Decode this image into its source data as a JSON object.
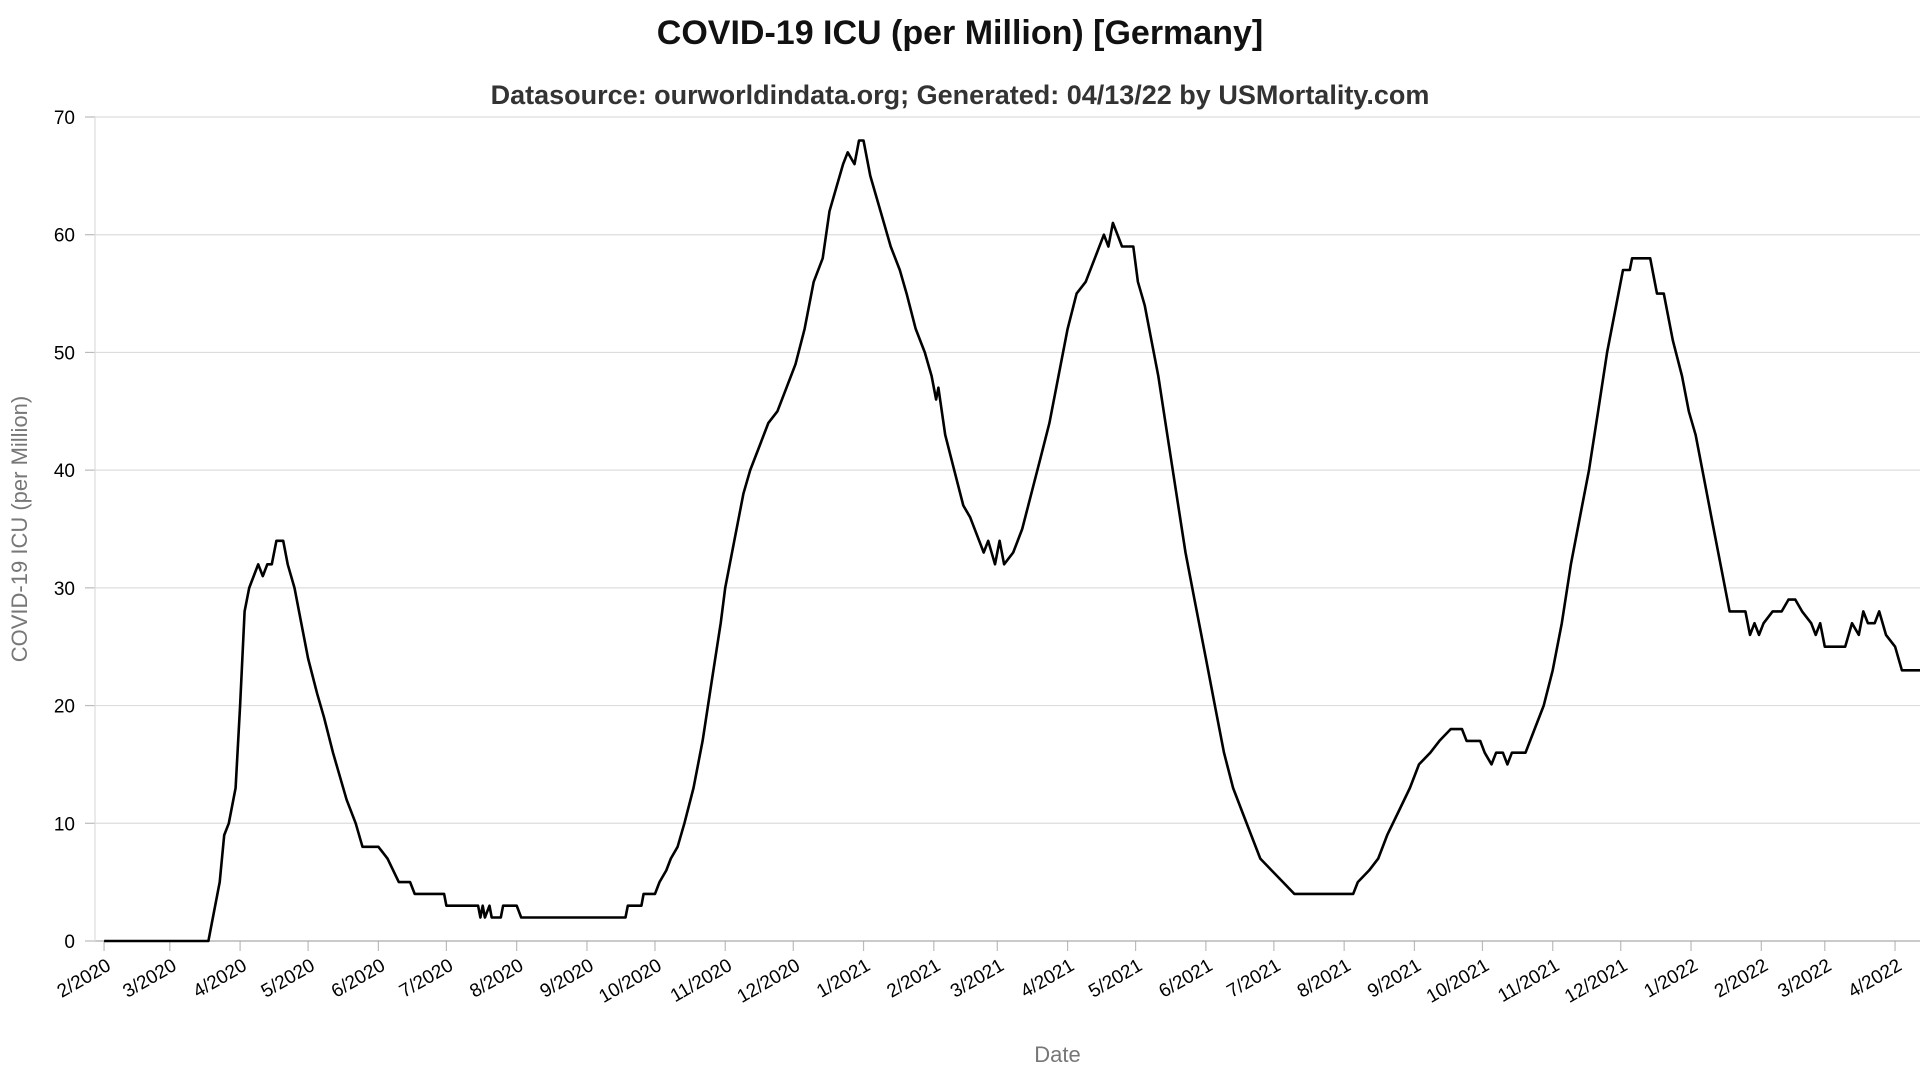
{
  "chart_data": {
    "type": "line",
    "title": "COVID-19 ICU (per Million) [Germany]",
    "subtitle": "Datasource: ourworldindata.org; Generated: 04/13/22 by USMortality.com",
    "xlabel": "Date",
    "ylabel": "COVID-19 ICU (per Million)",
    "ylim": [
      0,
      70
    ],
    "yticks": [
      0,
      10,
      20,
      30,
      40,
      50,
      60,
      70
    ],
    "xlim": [
      "2020-01-28",
      "2022-04-12"
    ],
    "xticks": [
      {
        "date": "2020-02-01",
        "label": "2/2020"
      },
      {
        "date": "2020-03-01",
        "label": "3/2020"
      },
      {
        "date": "2020-04-01",
        "label": "4/2020"
      },
      {
        "date": "2020-05-01",
        "label": "5/2020"
      },
      {
        "date": "2020-06-01",
        "label": "6/2020"
      },
      {
        "date": "2020-07-01",
        "label": "7/2020"
      },
      {
        "date": "2020-08-01",
        "label": "8/2020"
      },
      {
        "date": "2020-09-01",
        "label": "9/2020"
      },
      {
        "date": "2020-10-01",
        "label": "10/2020"
      },
      {
        "date": "2020-11-01",
        "label": "11/2020"
      },
      {
        "date": "2020-12-01",
        "label": "12/2020"
      },
      {
        "date": "2021-01-01",
        "label": "1/2021"
      },
      {
        "date": "2021-02-01",
        "label": "2/2021"
      },
      {
        "date": "2021-03-01",
        "label": "3/2021"
      },
      {
        "date": "2021-04-01",
        "label": "4/2021"
      },
      {
        "date": "2021-05-01",
        "label": "5/2021"
      },
      {
        "date": "2021-06-01",
        "label": "6/2021"
      },
      {
        "date": "2021-07-01",
        "label": "7/2021"
      },
      {
        "date": "2021-08-01",
        "label": "8/2021"
      },
      {
        "date": "2021-09-01",
        "label": "9/2021"
      },
      {
        "date": "2021-10-01",
        "label": "10/2021"
      },
      {
        "date": "2021-11-01",
        "label": "11/2021"
      },
      {
        "date": "2021-12-01",
        "label": "12/2021"
      },
      {
        "date": "2022-01-01",
        "label": "1/2022"
      },
      {
        "date": "2022-02-01",
        "label": "2/2022"
      },
      {
        "date": "2022-03-01",
        "label": "3/2022"
      },
      {
        "date": "2022-04-01",
        "label": "4/2022"
      }
    ],
    "grid": true,
    "series": [
      {
        "color": "#000000",
        "points": [
          [
            "2020-02-01",
            0
          ],
          [
            "2020-03-01",
            0
          ],
          [
            "2020-03-18",
            0
          ],
          [
            "2020-03-20",
            2
          ],
          [
            "2020-03-23",
            5
          ],
          [
            "2020-03-25",
            9
          ],
          [
            "2020-03-27",
            10
          ],
          [
            "2020-03-30",
            13
          ],
          [
            "2020-04-01",
            20
          ],
          [
            "2020-04-03",
            28
          ],
          [
            "2020-04-05",
            30
          ],
          [
            "2020-04-07",
            31
          ],
          [
            "2020-04-09",
            32
          ],
          [
            "2020-04-11",
            31
          ],
          [
            "2020-04-13",
            32
          ],
          [
            "2020-04-15",
            32
          ],
          [
            "2020-04-17",
            34
          ],
          [
            "2020-04-20",
            34
          ],
          [
            "2020-04-22",
            32
          ],
          [
            "2020-04-25",
            30
          ],
          [
            "2020-04-28",
            27
          ],
          [
            "2020-05-01",
            24
          ],
          [
            "2020-05-05",
            21
          ],
          [
            "2020-05-08",
            19
          ],
          [
            "2020-05-12",
            16
          ],
          [
            "2020-05-15",
            14
          ],
          [
            "2020-05-18",
            12
          ],
          [
            "2020-05-22",
            10
          ],
          [
            "2020-05-25",
            8
          ],
          [
            "2020-06-01",
            8
          ],
          [
            "2020-06-05",
            7
          ],
          [
            "2020-06-10",
            5
          ],
          [
            "2020-06-15",
            5
          ],
          [
            "2020-06-17",
            4
          ],
          [
            "2020-06-30",
            4
          ],
          [
            "2020-07-01",
            3
          ],
          [
            "2020-07-15",
            3
          ],
          [
            "2020-07-16",
            2
          ],
          [
            "2020-07-17",
            3
          ],
          [
            "2020-07-18",
            2
          ],
          [
            "2020-07-20",
            3
          ],
          [
            "2020-07-21",
            2
          ],
          [
            "2020-07-25",
            2
          ],
          [
            "2020-07-26",
            3
          ],
          [
            "2020-08-01",
            3
          ],
          [
            "2020-08-03",
            2
          ],
          [
            "2020-08-15",
            2
          ],
          [
            "2020-09-01",
            2
          ],
          [
            "2020-09-15",
            2
          ],
          [
            "2020-09-18",
            2
          ],
          [
            "2020-09-19",
            3
          ],
          [
            "2020-09-25",
            3
          ],
          [
            "2020-09-26",
            4
          ],
          [
            "2020-10-01",
            4
          ],
          [
            "2020-10-03",
            5
          ],
          [
            "2020-10-06",
            6
          ],
          [
            "2020-10-08",
            7
          ],
          [
            "2020-10-11",
            8
          ],
          [
            "2020-10-14",
            10
          ],
          [
            "2020-10-18",
            13
          ],
          [
            "2020-10-22",
            17
          ],
          [
            "2020-10-26",
            22
          ],
          [
            "2020-10-30",
            27
          ],
          [
            "2020-11-01",
            30
          ],
          [
            "2020-11-05",
            34
          ],
          [
            "2020-11-09",
            38
          ],
          [
            "2020-11-12",
            40
          ],
          [
            "2020-11-16",
            42
          ],
          [
            "2020-11-20",
            44
          ],
          [
            "2020-11-24",
            45
          ],
          [
            "2020-11-28",
            47
          ],
          [
            "2020-12-02",
            49
          ],
          [
            "2020-12-06",
            52
          ],
          [
            "2020-12-10",
            56
          ],
          [
            "2020-12-14",
            58
          ],
          [
            "2020-12-17",
            62
          ],
          [
            "2020-12-20",
            64
          ],
          [
            "2020-12-23",
            66
          ],
          [
            "2020-12-25",
            67
          ],
          [
            "2020-12-28",
            66
          ],
          [
            "2020-12-30",
            68
          ],
          [
            "2021-01-01",
            68
          ],
          [
            "2021-01-04",
            65
          ],
          [
            "2021-01-07",
            63
          ],
          [
            "2021-01-10",
            61
          ],
          [
            "2021-01-13",
            59
          ],
          [
            "2021-01-17",
            57
          ],
          [
            "2021-01-20",
            55
          ],
          [
            "2021-01-24",
            52
          ],
          [
            "2021-01-28",
            50
          ],
          [
            "2021-01-31",
            48
          ],
          [
            "2021-02-02",
            46
          ],
          [
            "2021-02-03",
            47
          ],
          [
            "2021-02-06",
            43
          ],
          [
            "2021-02-10",
            40
          ],
          [
            "2021-02-14",
            37
          ],
          [
            "2021-02-17",
            36
          ],
          [
            "2021-02-21",
            34
          ],
          [
            "2021-02-23",
            33
          ],
          [
            "2021-02-25",
            34
          ],
          [
            "2021-02-28",
            32
          ],
          [
            "2021-03-02",
            34
          ],
          [
            "2021-03-04",
            32
          ],
          [
            "2021-03-08",
            33
          ],
          [
            "2021-03-12",
            35
          ],
          [
            "2021-03-16",
            38
          ],
          [
            "2021-03-20",
            41
          ],
          [
            "2021-03-24",
            44
          ],
          [
            "2021-03-28",
            48
          ],
          [
            "2021-04-01",
            52
          ],
          [
            "2021-04-05",
            55
          ],
          [
            "2021-04-09",
            56
          ],
          [
            "2021-04-13",
            58
          ],
          [
            "2021-04-17",
            60
          ],
          [
            "2021-04-19",
            59
          ],
          [
            "2021-04-21",
            61
          ],
          [
            "2021-04-23",
            60
          ],
          [
            "2021-04-25",
            59
          ],
          [
            "2021-04-30",
            59
          ],
          [
            "2021-05-02",
            56
          ],
          [
            "2021-05-05",
            54
          ],
          [
            "2021-05-08",
            51
          ],
          [
            "2021-05-11",
            48
          ],
          [
            "2021-05-15",
            43
          ],
          [
            "2021-05-19",
            38
          ],
          [
            "2021-05-23",
            33
          ],
          [
            "2021-05-27",
            29
          ],
          [
            "2021-06-01",
            24
          ],
          [
            "2021-06-05",
            20
          ],
          [
            "2021-06-09",
            16
          ],
          [
            "2021-06-13",
            13
          ],
          [
            "2021-06-17",
            11
          ],
          [
            "2021-06-21",
            9
          ],
          [
            "2021-06-25",
            7
          ],
          [
            "2021-06-30",
            6
          ],
          [
            "2021-07-05",
            5
          ],
          [
            "2021-07-10",
            4
          ],
          [
            "2021-07-20",
            4
          ],
          [
            "2021-08-01",
            4
          ],
          [
            "2021-08-05",
            4
          ],
          [
            "2021-08-07",
            5
          ],
          [
            "2021-08-12",
            6
          ],
          [
            "2021-08-16",
            7
          ],
          [
            "2021-08-20",
            9
          ],
          [
            "2021-08-25",
            11
          ],
          [
            "2021-08-30",
            13
          ],
          [
            "2021-09-03",
            15
          ],
          [
            "2021-09-08",
            16
          ],
          [
            "2021-09-12",
            17
          ],
          [
            "2021-09-17",
            18
          ],
          [
            "2021-09-22",
            18
          ],
          [
            "2021-09-24",
            17
          ],
          [
            "2021-09-30",
            17
          ],
          [
            "2021-10-02",
            16
          ],
          [
            "2021-10-05",
            15
          ],
          [
            "2021-10-07",
            16
          ],
          [
            "2021-10-10",
            16
          ],
          [
            "2021-10-12",
            15
          ],
          [
            "2021-10-14",
            16
          ],
          [
            "2021-10-20",
            16
          ],
          [
            "2021-10-24",
            18
          ],
          [
            "2021-10-28",
            20
          ],
          [
            "2021-11-01",
            23
          ],
          [
            "2021-11-05",
            27
          ],
          [
            "2021-11-09",
            32
          ],
          [
            "2021-11-13",
            36
          ],
          [
            "2021-11-17",
            40
          ],
          [
            "2021-11-21",
            45
          ],
          [
            "2021-11-25",
            50
          ],
          [
            "2021-11-29",
            54
          ],
          [
            "2021-12-02",
            57
          ],
          [
            "2021-12-05",
            57
          ],
          [
            "2021-12-06",
            58
          ],
          [
            "2021-12-14",
            58
          ],
          [
            "2021-12-17",
            55
          ],
          [
            "2021-12-20",
            55
          ],
          [
            "2021-12-24",
            51
          ],
          [
            "2021-12-28",
            48
          ],
          [
            "2021-12-31",
            45
          ],
          [
            "2022-01-03",
            43
          ],
          [
            "2022-01-06",
            40
          ],
          [
            "2022-01-10",
            36
          ],
          [
            "2022-01-14",
            32
          ],
          [
            "2022-01-18",
            28
          ],
          [
            "2022-01-21",
            28
          ],
          [
            "2022-01-25",
            28
          ],
          [
            "2022-01-27",
            26
          ],
          [
            "2022-01-29",
            27
          ],
          [
            "2022-01-31",
            26
          ],
          [
            "2022-02-02",
            27
          ],
          [
            "2022-02-06",
            28
          ],
          [
            "2022-02-10",
            28
          ],
          [
            "2022-02-13",
            29
          ],
          [
            "2022-02-16",
            29
          ],
          [
            "2022-02-19",
            28
          ],
          [
            "2022-02-23",
            27
          ],
          [
            "2022-02-25",
            26
          ],
          [
            "2022-02-27",
            27
          ],
          [
            "2022-03-01",
            25
          ],
          [
            "2022-03-10",
            25
          ],
          [
            "2022-03-13",
            27
          ],
          [
            "2022-03-16",
            26
          ],
          [
            "2022-03-18",
            28
          ],
          [
            "2022-03-20",
            27
          ],
          [
            "2022-03-23",
            27
          ],
          [
            "2022-03-25",
            28
          ],
          [
            "2022-03-28",
            26
          ],
          [
            "2022-04-01",
            25
          ],
          [
            "2022-04-04",
            23
          ],
          [
            "2022-04-12",
            23
          ]
        ]
      }
    ]
  }
}
